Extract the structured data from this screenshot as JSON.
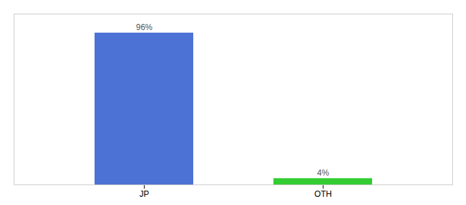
{
  "chart_data": {
    "type": "bar",
    "categories": [
      "JP",
      "OTH"
    ],
    "values": [
      96,
      4
    ],
    "value_labels": [
      "96%",
      "4%"
    ],
    "colors": [
      "#4b72d4",
      "#33cc33"
    ],
    "ylim": [
      0,
      108
    ],
    "data_labels": true,
    "tick_labels": "x",
    "grid": false
  }
}
